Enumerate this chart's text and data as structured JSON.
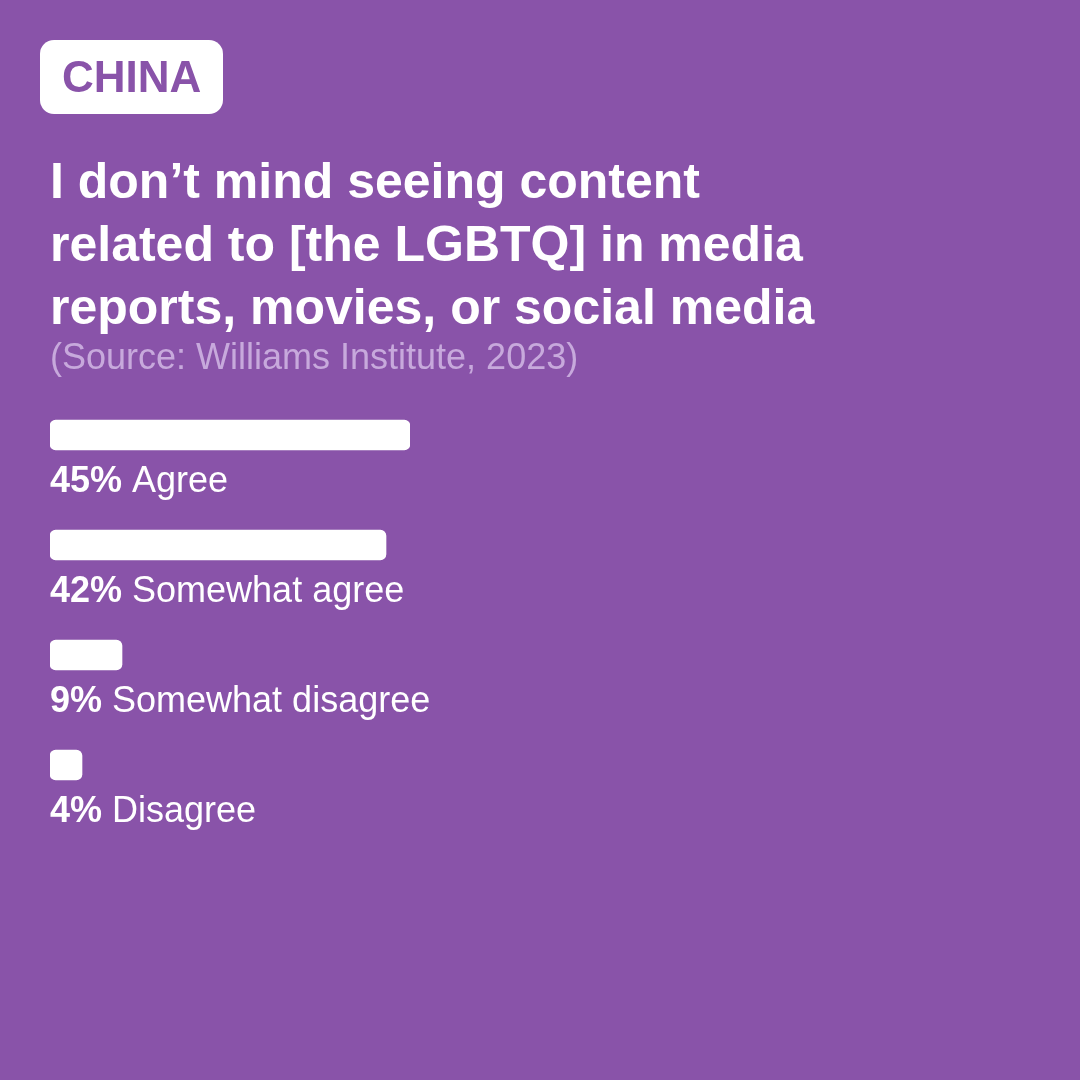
{
  "chart_data": {
    "type": "bar",
    "orientation": "horizontal",
    "title": "I don’t mind seeing content related to [the LGBTQ] in media reports, movies, or social media",
    "annotations": [
      "CHINA",
      "(Source: Williams Institute, 2023)"
    ],
    "categories": [
      "Agree",
      "Somewhat agree",
      "Somewhat disagree",
      "Disagree"
    ],
    "values": [
      45,
      42,
      9,
      4
    ],
    "value_labels": [
      "45%",
      "42%",
      "9%",
      "4%"
    ],
    "color": "#ffffff",
    "tick_labels": false
  }
}
